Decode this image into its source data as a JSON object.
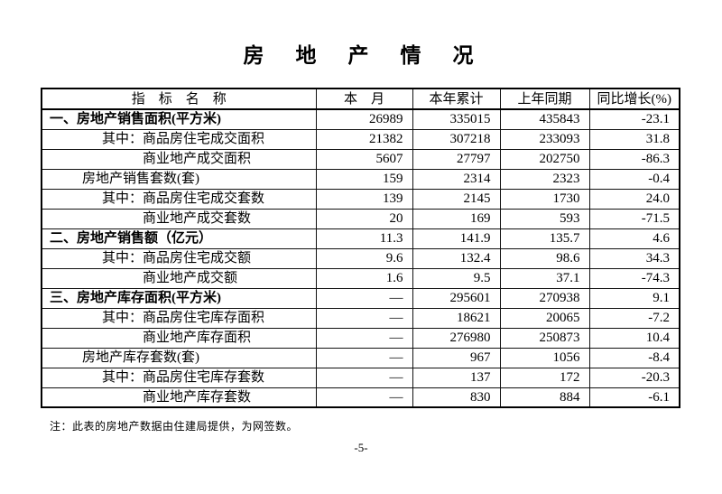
{
  "page": {
    "title": "房　地　产　情　况",
    "footnote": "注：此表的房地产数据由住建局提供，为网签数。",
    "page_number": "-5-"
  },
  "table": {
    "headers": [
      "指　标　名　称",
      "本　月",
      "本年累计",
      "上年同期",
      "同比增长(%)"
    ],
    "rows": [
      {
        "label": "一、房地产销售面积(平方米)",
        "level": "section",
        "values": [
          "26989",
          "335015",
          "435843",
          "-23.1"
        ]
      },
      {
        "label": "其中：商品房住宅成交面积",
        "level": "sub",
        "values": [
          "21382",
          "307218",
          "233093",
          "31.8"
        ]
      },
      {
        "label": "商业地产成交面积",
        "level": "sub2",
        "values": [
          "5607",
          "27797",
          "202750",
          "-86.3"
        ]
      },
      {
        "label": "房地产销售套数(套)",
        "level": "item",
        "values": [
          "159",
          "2314",
          "2323",
          "-0.4"
        ]
      },
      {
        "label": "其中：商品房住宅成交套数",
        "level": "sub",
        "values": [
          "139",
          "2145",
          "1730",
          "24.0"
        ]
      },
      {
        "label": "商业地产成交套数",
        "level": "sub2",
        "values": [
          "20",
          "169",
          "593",
          "-71.5"
        ]
      },
      {
        "label": "二、房地产销售额（亿元）",
        "level": "section",
        "values": [
          "11.3",
          "141.9",
          "135.7",
          "4.6"
        ]
      },
      {
        "label": "其中：商品房住宅成交额",
        "level": "sub",
        "values": [
          "9.6",
          "132.4",
          "98.6",
          "34.3"
        ]
      },
      {
        "label": "商业地产成交额",
        "level": "sub2",
        "values": [
          "1.6",
          "9.5",
          "37.1",
          "-74.3"
        ]
      },
      {
        "label": "三、房地产库存面积(平方米)",
        "level": "section",
        "values": [
          "—",
          "295601",
          "270938",
          "9.1"
        ]
      },
      {
        "label": "其中：商品房住宅库存面积",
        "level": "sub",
        "values": [
          "—",
          "18621",
          "20065",
          "-7.2"
        ]
      },
      {
        "label": "商业地产库存面积",
        "level": "sub2",
        "values": [
          "—",
          "276980",
          "250873",
          "10.4"
        ]
      },
      {
        "label": "房地产库存套数(套)",
        "level": "item",
        "values": [
          "—",
          "967",
          "1056",
          "-8.4"
        ]
      },
      {
        "label": "其中：商品房住宅库存套数",
        "level": "sub",
        "values": [
          "—",
          "137",
          "172",
          "-20.3"
        ]
      },
      {
        "label": "商业地产库存套数",
        "level": "sub2",
        "values": [
          "—",
          "830",
          "884",
          "-6.1"
        ]
      }
    ]
  }
}
